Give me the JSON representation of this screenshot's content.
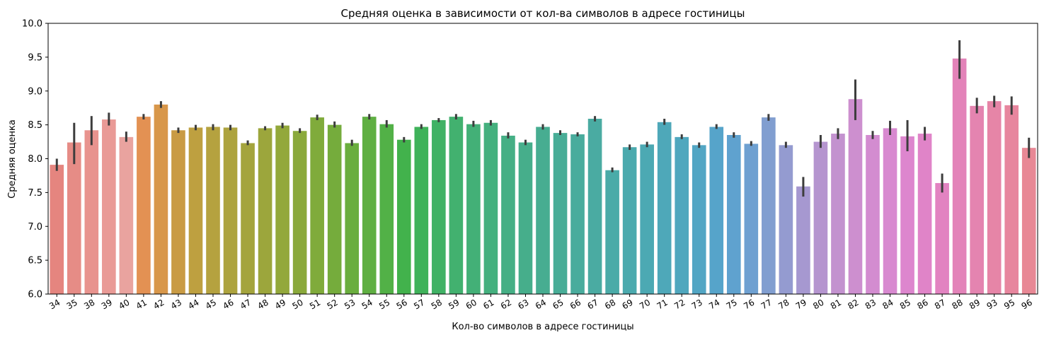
{
  "chart_data": {
    "type": "bar",
    "title": "Средняя оценка в зависимости от кол-ва символов в адресе гостиницы",
    "xlabel": "Кол-во символов в адресе гостиницы",
    "ylabel": "Средняя оценка",
    "ylim": [
      6.0,
      10.0
    ],
    "yticks": [
      "6.0",
      "6.5",
      "7.0",
      "7.5",
      "8.0",
      "8.5",
      "9.0",
      "9.5",
      "10.0"
    ],
    "grid": false,
    "categories": [
      "34",
      "35",
      "38",
      "39",
      "40",
      "41",
      "42",
      "43",
      "44",
      "45",
      "46",
      "47",
      "48",
      "49",
      "50",
      "51",
      "52",
      "53",
      "54",
      "55",
      "56",
      "57",
      "58",
      "59",
      "60",
      "61",
      "62",
      "63",
      "64",
      "65",
      "66",
      "67",
      "68",
      "69",
      "70",
      "71",
      "72",
      "73",
      "74",
      "75",
      "76",
      "77",
      "78",
      "79",
      "80",
      "81",
      "82",
      "83",
      "84",
      "85",
      "86",
      "87",
      "88",
      "89",
      "93",
      "95",
      "96"
    ],
    "values": [
      7.91,
      8.24,
      8.42,
      8.58,
      8.32,
      8.62,
      8.8,
      8.42,
      8.46,
      8.47,
      8.46,
      8.23,
      8.45,
      8.49,
      8.41,
      8.61,
      8.5,
      8.23,
      8.62,
      8.51,
      8.28,
      8.47,
      8.57,
      8.62,
      8.51,
      8.53,
      8.34,
      8.24,
      8.47,
      8.38,
      8.36,
      8.59,
      7.83,
      8.17,
      8.21,
      8.54,
      8.32,
      8.2,
      8.47,
      8.35,
      8.22,
      8.61,
      8.2,
      7.59,
      8.25,
      8.37,
      8.88,
      8.35,
      8.45,
      8.33,
      8.37,
      7.64,
      9.48,
      8.78,
      8.85,
      8.79,
      8.16
    ],
    "ci_low": [
      7.82,
      7.92,
      8.2,
      8.49,
      8.25,
      8.58,
      8.75,
      8.38,
      8.42,
      8.42,
      8.42,
      8.2,
      8.42,
      8.45,
      8.38,
      8.57,
      8.46,
      8.19,
      8.58,
      8.46,
      8.24,
      8.44,
      8.54,
      8.58,
      8.47,
      8.49,
      8.3,
      8.2,
      8.43,
      8.35,
      8.33,
      8.55,
      7.8,
      8.13,
      8.17,
      8.5,
      8.29,
      8.16,
      8.44,
      8.31,
      8.19,
      8.56,
      8.16,
      7.44,
      8.16,
      8.29,
      8.57,
      8.29,
      8.35,
      8.11,
      8.27,
      7.5,
      9.18,
      8.67,
      8.76,
      8.65,
      8.01
    ],
    "ci_high": [
      8.0,
      8.53,
      8.63,
      8.68,
      8.4,
      8.66,
      8.85,
      8.46,
      8.5,
      8.51,
      8.5,
      8.27,
      8.48,
      8.53,
      8.45,
      8.65,
      8.55,
      8.28,
      8.66,
      8.57,
      8.32,
      8.51,
      8.6,
      8.66,
      8.56,
      8.57,
      8.39,
      8.28,
      8.51,
      8.42,
      8.39,
      8.63,
      7.87,
      8.21,
      8.25,
      8.59,
      8.36,
      8.24,
      8.51,
      8.39,
      8.26,
      8.66,
      8.25,
      7.73,
      8.35,
      8.45,
      9.17,
      8.41,
      8.56,
      8.57,
      8.47,
      7.78,
      9.75,
      8.9,
      8.93,
      8.92,
      8.31
    ],
    "colors": [
      "#e5857f",
      "#e68c86",
      "#e8938e",
      "#e99a96",
      "#e9a39f",
      "#e39153",
      "#d8974a",
      "#c99b44",
      "#bea040",
      "#b5a23f",
      "#ada33e",
      "#a4a43d",
      "#9ca63c",
      "#93a83b",
      "#8aa93b",
      "#80ab3b",
      "#75ac3c",
      "#6aae3e",
      "#5faf42",
      "#52b147",
      "#42b24c",
      "#3fb25a",
      "#40b265",
      "#42b16f",
      "#43b077",
      "#44b07e",
      "#45af85",
      "#46ae8b",
      "#47ad91",
      "#48ad97",
      "#49ac9d",
      "#4aaba2",
      "#4aaba8",
      "#4baaae",
      "#4ca9b3",
      "#4ea8b9",
      "#4fa7be",
      "#52a6c4",
      "#56a4ca",
      "#5fa2cf",
      "#6ea0d1",
      "#819ed0",
      "#949bd0",
      "#a698d0",
      "#b595cf",
      "#c392cf",
      "#cd8fcf",
      "#d38cd0",
      "#d889d0",
      "#dd86ce",
      "#e084c8",
      "#e283c1",
      "#e383b9",
      "#e484b0",
      "#e685a7",
      "#e7869e",
      "#e88895"
    ]
  }
}
